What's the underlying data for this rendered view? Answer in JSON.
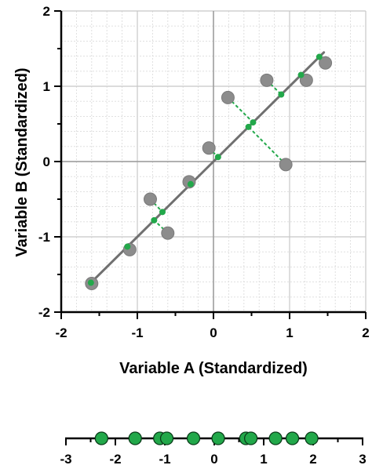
{
  "chart_data": [
    {
      "type": "scatter",
      "xlabel": "Variable A (Standardized)",
      "ylabel": "Variable B (Standardized)",
      "xlim": [
        -2,
        2
      ],
      "ylim": [
        -2,
        2
      ],
      "x_ticks": [
        "-2",
        "-1",
        "0",
        "1",
        "2"
      ],
      "y_ticks": [
        "2",
        "1",
        "0",
        "-1",
        "-2"
      ],
      "grid": true,
      "minor_grid": true,
      "fit_line": {
        "x": [
          -1.6,
          1.45
        ],
        "y": [
          -1.6,
          1.45
        ]
      },
      "points": [
        {
          "x": -1.6,
          "y": -1.62
        },
        {
          "x": -1.1,
          "y": -1.17
        },
        {
          "x": -0.83,
          "y": -0.5
        },
        {
          "x": -0.6,
          "y": -0.95
        },
        {
          "x": -0.32,
          "y": -0.27
        },
        {
          "x": -0.06,
          "y": 0.18
        },
        {
          "x": 0.19,
          "y": 0.85
        },
        {
          "x": 0.7,
          "y": 1.08
        },
        {
          "x": 0.95,
          "y": -0.04
        },
        {
          "x": 1.22,
          "y": 1.08
        },
        {
          "x": 1.47,
          "y": 1.31
        }
      ],
      "projections": [
        {
          "x": -1.61,
          "y": -1.61
        },
        {
          "x": -1.13,
          "y": -1.13
        },
        {
          "x": -0.67,
          "y": -0.67
        },
        {
          "x": -0.78,
          "y": -0.78
        },
        {
          "x": -0.3,
          "y": -0.3
        },
        {
          "x": 0.06,
          "y": 0.06
        },
        {
          "x": 0.52,
          "y": 0.52
        },
        {
          "x": 0.89,
          "y": 0.89
        },
        {
          "x": 0.46,
          "y": 0.46
        },
        {
          "x": 1.15,
          "y": 1.15
        },
        {
          "x": 1.39,
          "y": 1.39
        }
      ],
      "colors": {
        "point": "#8c8c8c",
        "fit_line": "#707070",
        "projection": "#22a84a",
        "grid": "#dcdcdc"
      }
    },
    {
      "type": "scatter",
      "orientation": "1d",
      "xlim": [
        -3,
        3
      ],
      "x_ticks": [
        "-3",
        "-2",
        "-1",
        "0",
        "1",
        "2",
        "3"
      ],
      "values": [
        -2.28,
        -1.6,
        -1.1,
        -0.96,
        -0.42,
        0.08,
        0.64,
        0.74,
        1.24,
        1.58,
        1.97
      ],
      "colors": {
        "point": "#22a84a",
        "outline": "#0a3d1a"
      }
    }
  ]
}
